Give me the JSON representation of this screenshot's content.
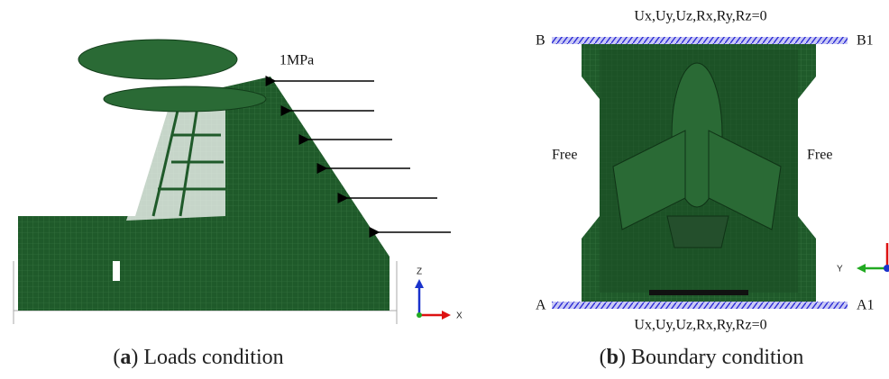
{
  "panel_a": {
    "load_label": "1MPa",
    "axis_z": "Z",
    "axis_x": "X",
    "caption": {
      "prefix": "(",
      "label": "a",
      "suffix": ") Loads condition"
    }
  },
  "panel_b": {
    "top_constraint": "Ux,Uy,Uz,Rx,Ry,Rz=0",
    "bottom_constraint": "Ux,Uy,Uz,Rx,Ry,Rz=0",
    "corner_top_left": "B",
    "corner_top_right": "B1",
    "corner_bottom_left": "A",
    "corner_bottom_right": "A1",
    "side_left": "Free",
    "side_right": "Free",
    "axis_y": "Y",
    "caption": {
      "prefix": "(",
      "label": "b",
      "suffix": ") Boundary condition"
    }
  }
}
